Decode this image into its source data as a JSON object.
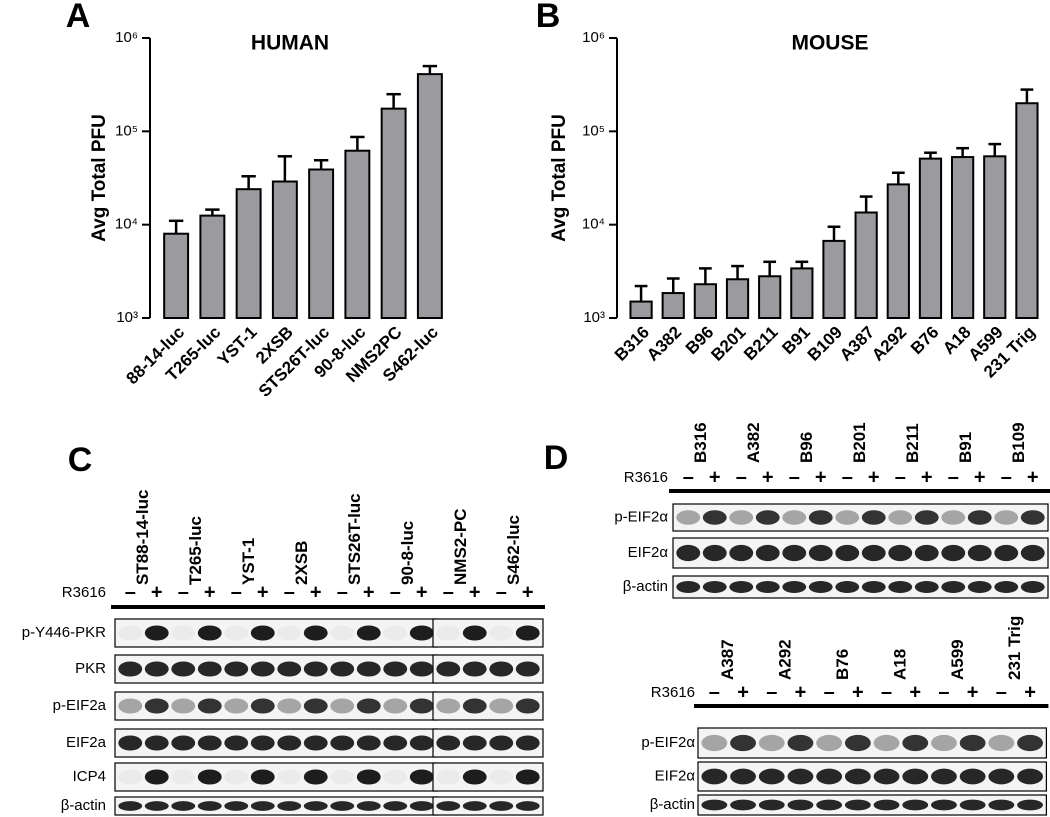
{
  "chart_data": [
    {
      "type": "bar",
      "panel": "A",
      "title": "HUMAN",
      "y_label": "Avg Total PFU",
      "log_scale": true,
      "color": "#9b9b9f",
      "categories": [
        "88-14-luc",
        "T265-luc",
        "YST-1",
        "2XSB",
        "STS26T-luc",
        "90-8-luc",
        "NMS2PC",
        "S462-luc"
      ],
      "values": [
        8000,
        12500,
        24000,
        29000,
        39000,
        62000,
        175000,
        410000
      ],
      "errors": [
        3000,
        2000,
        9000,
        25000,
        10000,
        25000,
        75000,
        90000
      ],
      "ylim": [
        1000,
        1000000
      ],
      "yticks": [
        {
          "value": 1000,
          "label": "10³"
        },
        {
          "value": 10000,
          "label": "10⁴"
        },
        {
          "value": 100000,
          "label": "10⁵"
        },
        {
          "value": 1000000,
          "label": "10⁶"
        }
      ]
    },
    {
      "type": "bar",
      "panel": "B",
      "title": "MOUSE",
      "y_label": "Avg Total PFU",
      "log_scale": true,
      "color": "#9b9b9f",
      "categories": [
        "B316",
        "A382",
        "B96",
        "B201",
        "B211",
        "B91",
        "B109",
        "A387",
        "A292",
        "B76",
        "A18",
        "A599",
        "231 Trig"
      ],
      "values": [
        1500,
        1850,
        2300,
        2600,
        2800,
        3400,
        6700,
        13500,
        27000,
        51000,
        53000,
        54000,
        200000
      ],
      "errors": [
        700,
        800,
        1100,
        1000,
        1200,
        600,
        2800,
        6500,
        9000,
        8000,
        13000,
        19000,
        80000
      ],
      "ylim": [
        1000,
        1000000
      ],
      "yticks": [
        {
          "value": 1000,
          "label": "10³"
        },
        {
          "value": 10000,
          "label": "10⁴"
        },
        {
          "value": 100000,
          "label": "10⁵"
        },
        {
          "value": 1000000,
          "label": "10⁶"
        }
      ]
    }
  ],
  "blots": [
    {
      "panel": "C",
      "treatment": "R3616",
      "signs": [
        "–",
        "+"
      ],
      "columns": [
        "ST88-14-luc",
        "T265-luc",
        "YST-1",
        "2XSB",
        "STS26T-luc",
        "90-8-luc",
        "NMS2-PC",
        "S462-luc"
      ],
      "rows": [
        "p-Y446-PKR",
        "PKR",
        "p-EIF2a",
        "EIF2a",
        "ICP4",
        "β-actin"
      ]
    },
    {
      "panel": "D",
      "treatment": "R3616",
      "signs": [
        "–",
        "+"
      ],
      "columns": [
        "B316",
        "A382",
        "B96",
        "B201",
        "B211",
        "B91",
        "B109"
      ],
      "rows": [
        "p-EIF2α",
        "EIF2α",
        "β-actin"
      ]
    },
    {
      "treatment": "R3616",
      "signs": [
        "–",
        "+"
      ],
      "columns": [
        "A387",
        "A292",
        "B76",
        "A18",
        "A599",
        "231 Trig"
      ],
      "rows": [
        "p-EIF2α",
        "EIF2α",
        "β-actin"
      ]
    }
  ]
}
